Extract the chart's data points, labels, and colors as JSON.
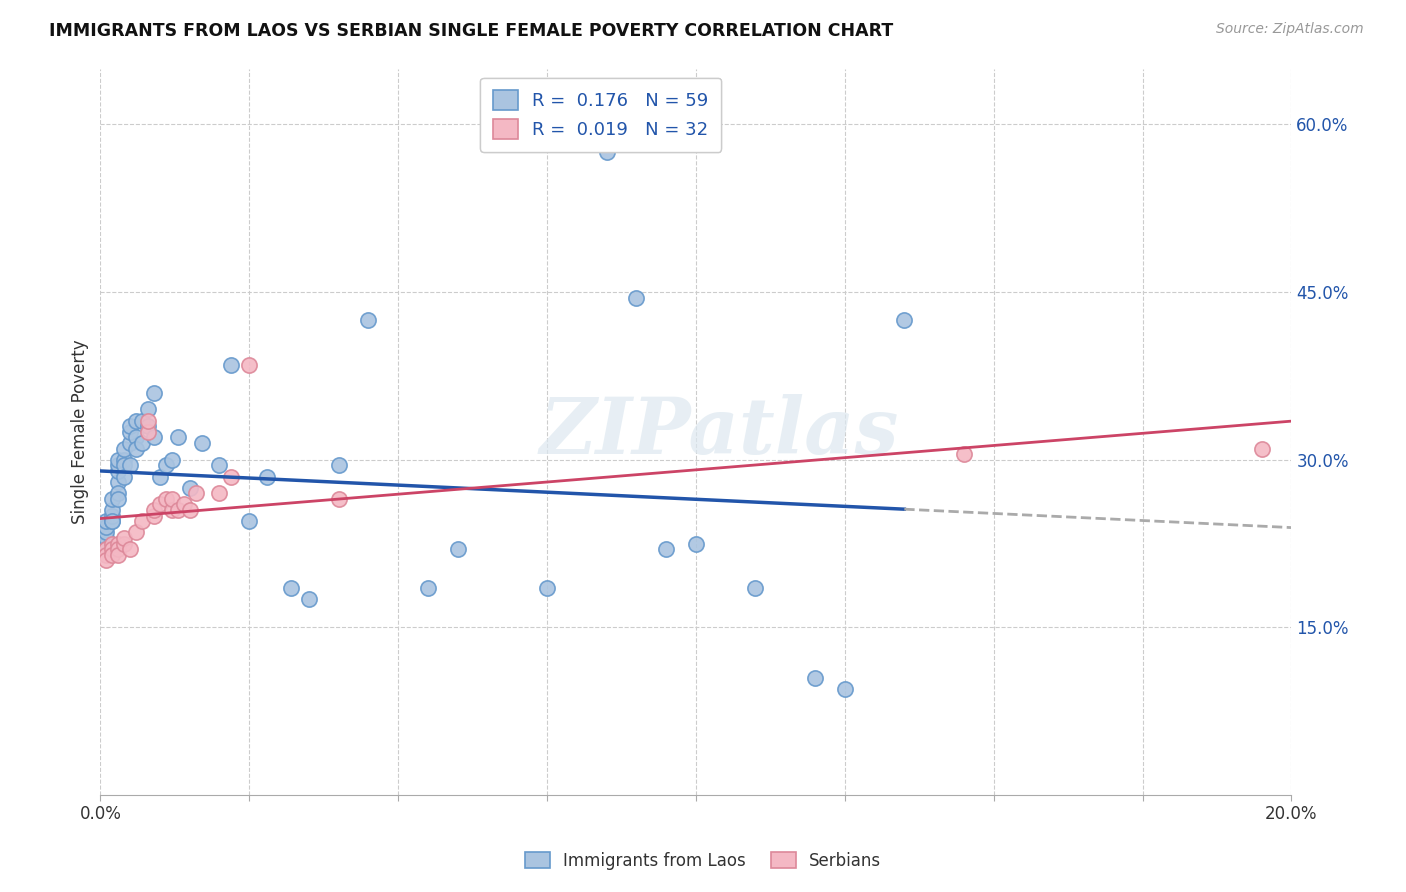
{
  "title": "IMMIGRANTS FROM LAOS VS SERBIAN SINGLE FEMALE POVERTY CORRELATION CHART",
  "source": "Source: ZipAtlas.com",
  "ylabel": "Single Female Poverty",
  "right_yticks": [
    "60.0%",
    "45.0%",
    "30.0%",
    "15.0%"
  ],
  "right_ytick_vals": [
    0.6,
    0.45,
    0.3,
    0.15
  ],
  "legend_blue_R": "0.176",
  "legend_blue_N": "59",
  "legend_pink_R": "0.019",
  "legend_pink_N": "32",
  "legend_label_blue": "Immigrants from Laos",
  "legend_label_pink": "Serbians",
  "blue_color": "#aac4e0",
  "pink_color": "#f4b8c4",
  "blue_edge_color": "#6699cc",
  "pink_edge_color": "#dd8899",
  "blue_line_color": "#2255aa",
  "pink_line_color": "#cc4466",
  "dashed_line_color": "#aaaaaa",
  "watermark": "ZIPatlas",
  "blue_x": [
    0.001,
    0.001,
    0.001,
    0.001,
    0.001,
    0.001,
    0.002,
    0.002,
    0.002,
    0.002,
    0.002,
    0.003,
    0.003,
    0.003,
    0.003,
    0.003,
    0.003,
    0.004,
    0.004,
    0.004,
    0.004,
    0.005,
    0.005,
    0.005,
    0.005,
    0.006,
    0.006,
    0.006,
    0.007,
    0.007,
    0.008,
    0.008,
    0.009,
    0.009,
    0.01,
    0.011,
    0.012,
    0.013,
    0.015,
    0.017,
    0.02,
    0.022,
    0.025,
    0.028,
    0.032,
    0.035,
    0.04,
    0.045,
    0.055,
    0.06,
    0.075,
    0.085,
    0.09,
    0.095,
    0.1,
    0.11,
    0.12,
    0.125,
    0.135
  ],
  "blue_y": [
    0.225,
    0.23,
    0.235,
    0.24,
    0.245,
    0.22,
    0.245,
    0.25,
    0.255,
    0.265,
    0.245,
    0.28,
    0.29,
    0.295,
    0.3,
    0.27,
    0.265,
    0.3,
    0.295,
    0.31,
    0.285,
    0.315,
    0.325,
    0.33,
    0.295,
    0.32,
    0.335,
    0.31,
    0.335,
    0.315,
    0.345,
    0.33,
    0.36,
    0.32,
    0.285,
    0.295,
    0.3,
    0.32,
    0.275,
    0.315,
    0.295,
    0.385,
    0.245,
    0.285,
    0.185,
    0.175,
    0.295,
    0.425,
    0.185,
    0.22,
    0.185,
    0.575,
    0.445,
    0.22,
    0.225,
    0.185,
    0.105,
    0.095,
    0.425
  ],
  "pink_x": [
    0.001,
    0.001,
    0.001,
    0.002,
    0.002,
    0.002,
    0.003,
    0.003,
    0.003,
    0.004,
    0.004,
    0.005,
    0.006,
    0.007,
    0.008,
    0.008,
    0.009,
    0.009,
    0.01,
    0.011,
    0.012,
    0.012,
    0.013,
    0.014,
    0.015,
    0.016,
    0.02,
    0.022,
    0.025,
    0.04,
    0.145,
    0.195
  ],
  "pink_y": [
    0.22,
    0.215,
    0.21,
    0.225,
    0.22,
    0.215,
    0.225,
    0.22,
    0.215,
    0.225,
    0.23,
    0.22,
    0.235,
    0.245,
    0.325,
    0.335,
    0.25,
    0.255,
    0.26,
    0.265,
    0.255,
    0.265,
    0.255,
    0.26,
    0.255,
    0.27,
    0.27,
    0.285,
    0.385,
    0.265,
    0.305,
    0.31
  ],
  "xmin": 0.0,
  "xmax": 0.2,
  "ymin": 0.0,
  "ymax": 0.65,
  "x_tick_positions": [
    0.0,
    0.025,
    0.05,
    0.075,
    0.1,
    0.125,
    0.15,
    0.175,
    0.2
  ],
  "x_tick_labels": [
    "0.0%",
    "",
    "",
    "",
    "",
    "",
    "",
    "",
    "20.0%"
  ]
}
